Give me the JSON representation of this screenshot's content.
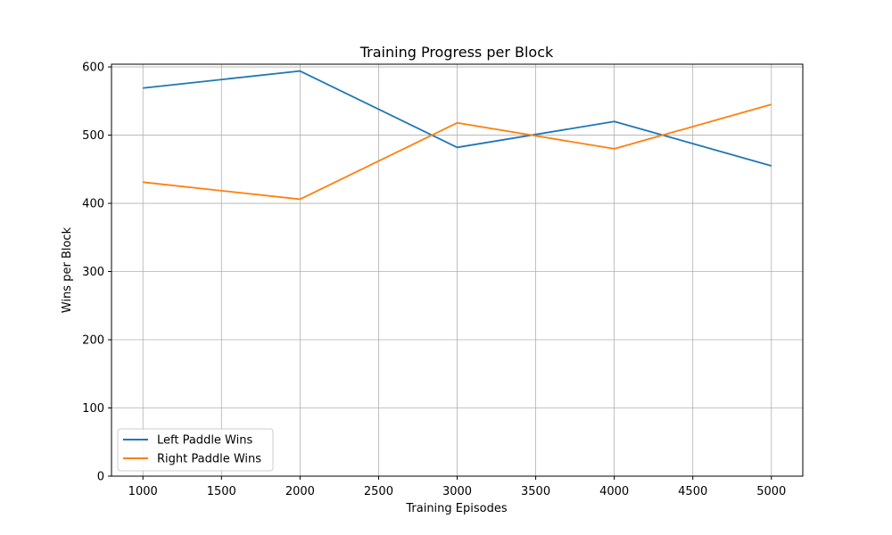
{
  "chart_data": {
    "type": "line",
    "title": "Training Progress per Block",
    "xlabel": "Training Episodes",
    "ylabel": "Wins per Block",
    "x": [
      1000,
      2000,
      3000,
      4000,
      5000
    ],
    "xlim": [
      800,
      5200
    ],
    "ylim": [
      0,
      604
    ],
    "xticks": [
      1000,
      1500,
      2000,
      2500,
      3000,
      3500,
      4000,
      4500,
      5000
    ],
    "yticks": [
      0,
      100,
      200,
      300,
      400,
      500,
      600
    ],
    "grid": true,
    "legend_position": "lower-left",
    "series": [
      {
        "name": "Left Paddle Wins",
        "color": "#1f77b4",
        "values": [
          569,
          594,
          482,
          520,
          455
        ]
      },
      {
        "name": "Right Paddle Wins",
        "color": "#ff7f0e",
        "values": [
          431,
          406,
          518,
          480,
          545
        ]
      }
    ]
  }
}
